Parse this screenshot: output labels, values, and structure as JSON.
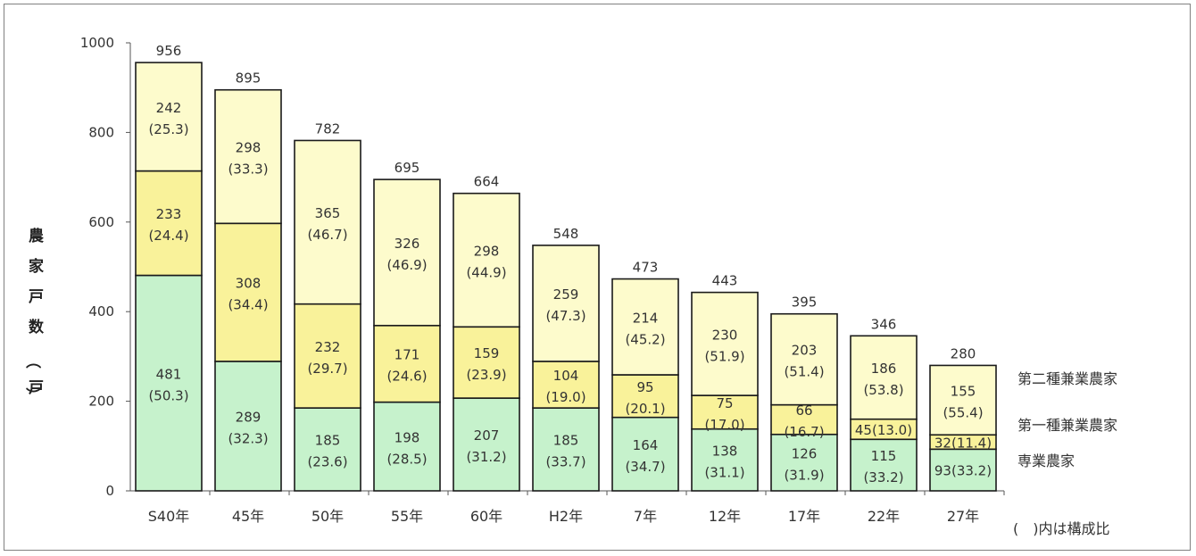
{
  "chart_data": {
    "type": "bar",
    "stacked": true,
    "ylabel": "農家戸数（戸）",
    "ylim": [
      0,
      1000
    ],
    "yticks": [
      0,
      200,
      400,
      600,
      800,
      1000
    ],
    "categories": [
      "S40年",
      "45年",
      "50年",
      "55年",
      "60年",
      "H2年",
      "7年",
      "12年",
      "17年",
      "22年",
      "27年"
    ],
    "totals": [
      956,
      895,
      782,
      695,
      664,
      548,
      473,
      443,
      395,
      346,
      280
    ],
    "series": [
      {
        "name": "専業農家",
        "color": "#c6f2cc",
        "values": [
          481,
          289,
          185,
          198,
          207,
          185,
          164,
          138,
          126,
          115,
          93
        ],
        "labels": [
          "481\n(50.3)",
          "289\n(32.3)",
          "185\n(23.6)",
          "198\n(28.5)",
          "207\n(31.2)",
          "185\n(33.7)",
          "164\n(34.7)",
          "138\n(31.1)",
          "126\n(31.9)",
          "115\n(33.2)",
          "93(33.2)"
        ]
      },
      {
        "name": "第一種兼業農家",
        "color": "#f9f29a",
        "values": [
          233,
          308,
          232,
          171,
          159,
          104,
          95,
          75,
          66,
          45,
          32
        ],
        "labels": [
          "233\n(24.4)",
          "308\n(34.4)",
          "232\n(29.7)",
          "171\n(24.6)",
          "159\n(23.9)",
          "104\n(19.0)",
          "95\n(20.1)",
          "75\n(17.0)",
          "66\n(16.7)",
          "45(13.0)",
          "32(11.4)"
        ]
      },
      {
        "name": "第二種兼業農家",
        "color": "#fdfbcc",
        "values": [
          242,
          298,
          365,
          326,
          298,
          259,
          214,
          230,
          203,
          186,
          155
        ],
        "labels": [
          "242\n(25.3)",
          "298\n(33.3)",
          "365\n(46.7)",
          "326\n(46.9)",
          "298\n(44.9)",
          "259\n(47.3)",
          "214\n(45.2)",
          "230\n(51.9)",
          "203\n(51.4)",
          "186\n(53.8)",
          "155\n(55.4)"
        ]
      }
    ],
    "legend_placement": "right",
    "note": "(　)内は構成比",
    "grid": false
  }
}
